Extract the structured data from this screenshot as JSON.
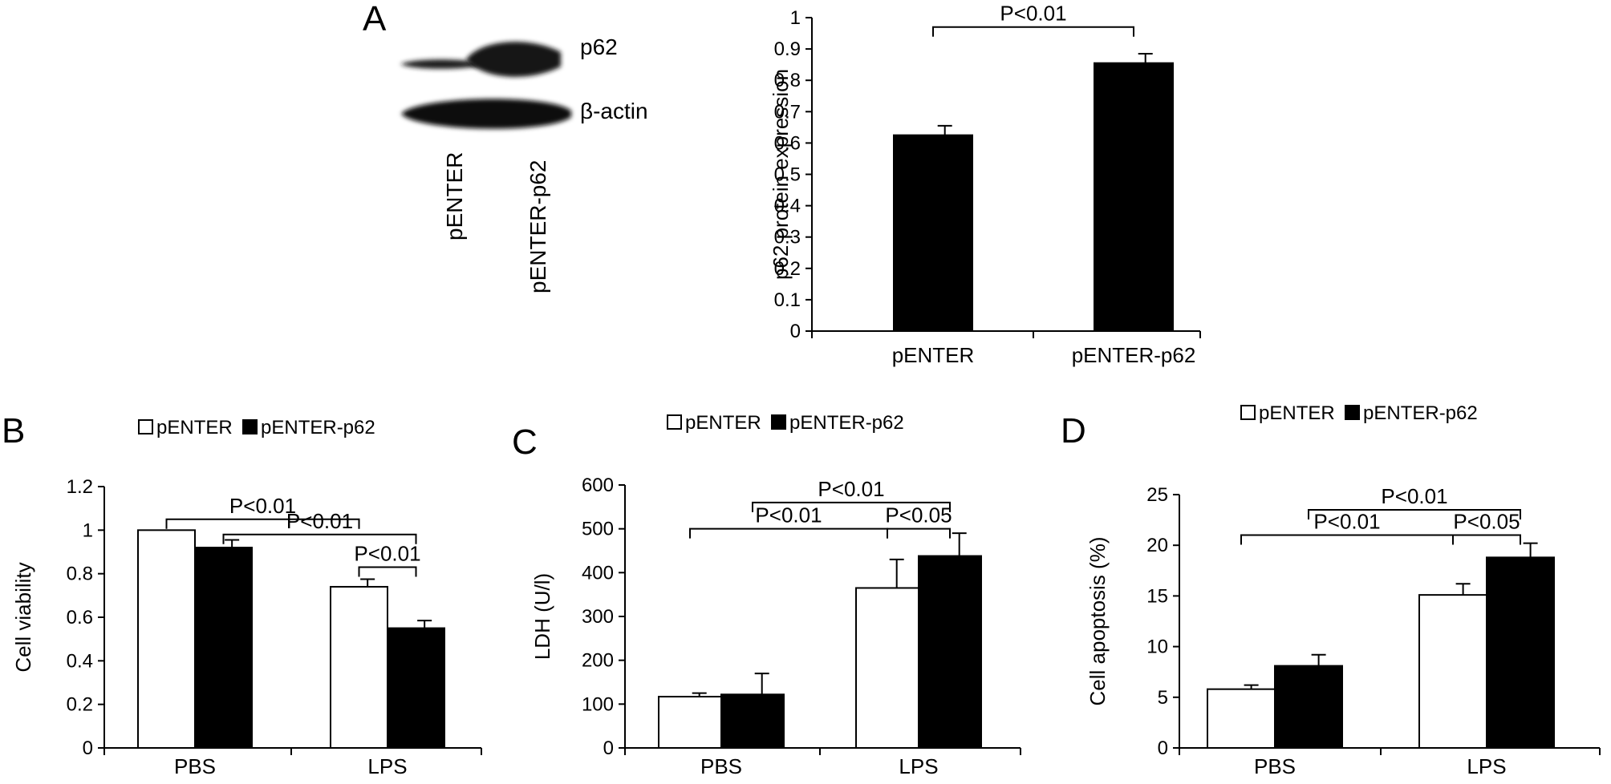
{
  "blot": {
    "band_labels": [
      "p62",
      "β-actin"
    ],
    "lane_labels": [
      "pENTER",
      "pENTER-p62"
    ],
    "relative_band_intensity": {
      "p62": [
        0.35,
        1.0
      ],
      "beta_actin": [
        1.0,
        1.0
      ]
    }
  },
  "chart_data": [
    {
      "panel": "A",
      "type": "bar",
      "categories": [
        "pENTER",
        "pENTER-p62"
      ],
      "values": [
        0.625,
        0.855
      ],
      "errors": [
        0.03,
        0.03
      ],
      "colors": [
        "#000000",
        "#000000"
      ],
      "ylabel": "p62 protein expression",
      "ylim": [
        0,
        1
      ],
      "yticks": [
        0,
        0.1,
        0.2,
        0.3,
        0.4,
        0.5,
        0.6,
        0.7,
        0.8,
        0.9,
        1
      ],
      "ytick_labels": [
        "0",
        "0.1",
        "0.2",
        "0.3",
        "0.4",
        "0.5",
        "0.6",
        "0.7",
        "0.8",
        "0.9",
        "1"
      ],
      "annotations": [
        {
          "text": "P<0.01",
          "from": [
            0,
            0
          ],
          "to": [
            1,
            0
          ],
          "level": 0.97
        }
      ]
    },
    {
      "panel": "B",
      "type": "bar",
      "categories": [
        "PBS",
        "LPS"
      ],
      "series": [
        {
          "name": "pENTER",
          "color": "#ffffff",
          "values": [
            1.0,
            0.74
          ],
          "errors": [
            0.0,
            0.035
          ]
        },
        {
          "name": "pENTER-p62",
          "color": "#000000",
          "values": [
            0.92,
            0.55
          ],
          "errors": [
            0.035,
            0.035
          ]
        }
      ],
      "ylabel": "Cell viability",
      "ylim": [
        0,
        1.2
      ],
      "yticks": [
        0,
        0.2,
        0.4,
        0.6,
        0.8,
        1,
        1.2
      ],
      "ytick_labels": [
        "0",
        "0.2",
        "0.4",
        "0.6",
        "0.8",
        "1",
        "1.2"
      ],
      "legend": {
        "position": "top",
        "entries": [
          "pENTER",
          "pENTER-p62"
        ]
      },
      "annotations": [
        {
          "text": "P<0.01",
          "from": [
            0,
            0
          ],
          "to": [
            1,
            0
          ],
          "level": 1.05
        },
        {
          "text": "P<0.01",
          "from": [
            0,
            1
          ],
          "to": [
            1,
            1
          ],
          "level": 0.98
        },
        {
          "text": "P<0.01",
          "from": [
            1,
            0
          ],
          "to": [
            1,
            1
          ],
          "level": 0.83
        }
      ]
    },
    {
      "panel": "C",
      "type": "bar",
      "categories": [
        "PBS",
        "LPS"
      ],
      "series": [
        {
          "name": "pENTER",
          "color": "#ffffff",
          "values": [
            117,
            365
          ],
          "errors": [
            8,
            65
          ]
        },
        {
          "name": "pENTER-p62",
          "color": "#000000",
          "values": [
            122,
            438
          ],
          "errors": [
            48,
            52
          ]
        }
      ],
      "ylabel": "LDH (U/l)",
      "ylim": [
        0,
        600
      ],
      "yticks": [
        0,
        100,
        200,
        300,
        400,
        500,
        600
      ],
      "ytick_labels": [
        "0",
        "100",
        "200",
        "300",
        "400",
        "500",
        "600"
      ],
      "legend": {
        "position": "top",
        "entries": [
          "pENTER",
          "pENTER-p62"
        ]
      },
      "annotations": [
        {
          "text": "P<0.01",
          "from": [
            0,
            1
          ],
          "to": [
            1,
            1
          ],
          "level": 560
        },
        {
          "text": "P<0.01",
          "from": [
            0,
            0
          ],
          "to": [
            1,
            0
          ],
          "level": 500
        },
        {
          "text": "P<0.05",
          "from": [
            1,
            0
          ],
          "to": [
            1,
            1
          ],
          "level": 500
        }
      ]
    },
    {
      "panel": "D",
      "type": "bar",
      "categories": [
        "PBS",
        "LPS"
      ],
      "series": [
        {
          "name": "pENTER",
          "color": "#ffffff",
          "values": [
            5.8,
            15.1
          ],
          "errors": [
            0.4,
            1.1
          ]
        },
        {
          "name": "pENTER-p62",
          "color": "#000000",
          "values": [
            8.1,
            18.8
          ],
          "errors": [
            1.1,
            1.4
          ]
        }
      ],
      "ylabel": "Cell apoptosis (%)",
      "ylim": [
        0,
        25
      ],
      "yticks": [
        0,
        5,
        10,
        15,
        20,
        25
      ],
      "ytick_labels": [
        "0",
        "5",
        "10",
        "15",
        "20",
        "25"
      ],
      "legend": {
        "position": "top",
        "entries": [
          "pENTER",
          "pENTER-p62"
        ]
      },
      "annotations": [
        {
          "text": "P<0.01",
          "from": [
            0,
            1
          ],
          "to": [
            1,
            1
          ],
          "level": 23.5
        },
        {
          "text": "P<0.01",
          "from": [
            0,
            0
          ],
          "to": [
            1,
            0
          ],
          "level": 21.0
        },
        {
          "text": "P<0.05",
          "from": [
            1,
            0
          ],
          "to": [
            1,
            1
          ],
          "level": 21.0
        }
      ]
    }
  ]
}
